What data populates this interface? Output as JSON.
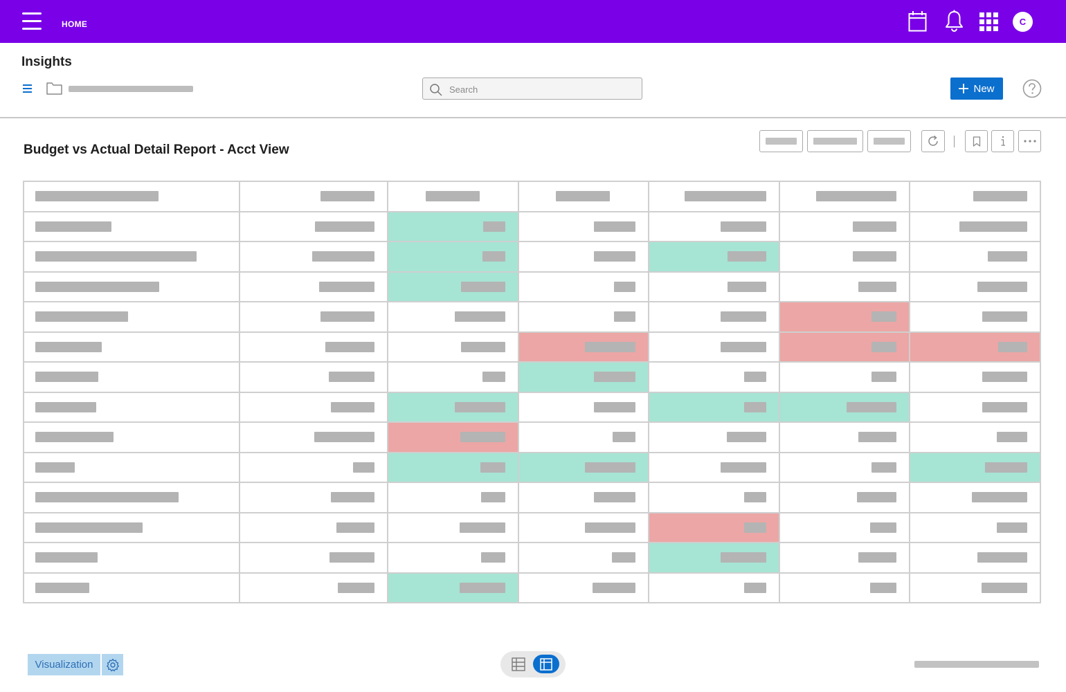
{
  "colors": {
    "topbar": "#7a00e8",
    "primary": "#0b6fce",
    "highlight_good": "#a6e4d4",
    "highlight_bad": "#eca6a5",
    "placeholder": "#b4b4b4"
  },
  "topbar": {
    "home_label": "HOME",
    "icons": [
      "menu-icon",
      "calendar-icon",
      "bell-icon",
      "apps-grid-icon"
    ],
    "avatar_initial": "C"
  },
  "header": {
    "title": "Insights",
    "search_placeholder": "Search",
    "new_button_label": "New"
  },
  "report": {
    "title": "Budget vs Actual Detail Report - Acct View",
    "toolbar_icons": [
      "refresh-icon",
      "bookmark-icon",
      "info-icon",
      "more-icon"
    ]
  },
  "footer": {
    "visualization_label": "Visualization"
  }
}
